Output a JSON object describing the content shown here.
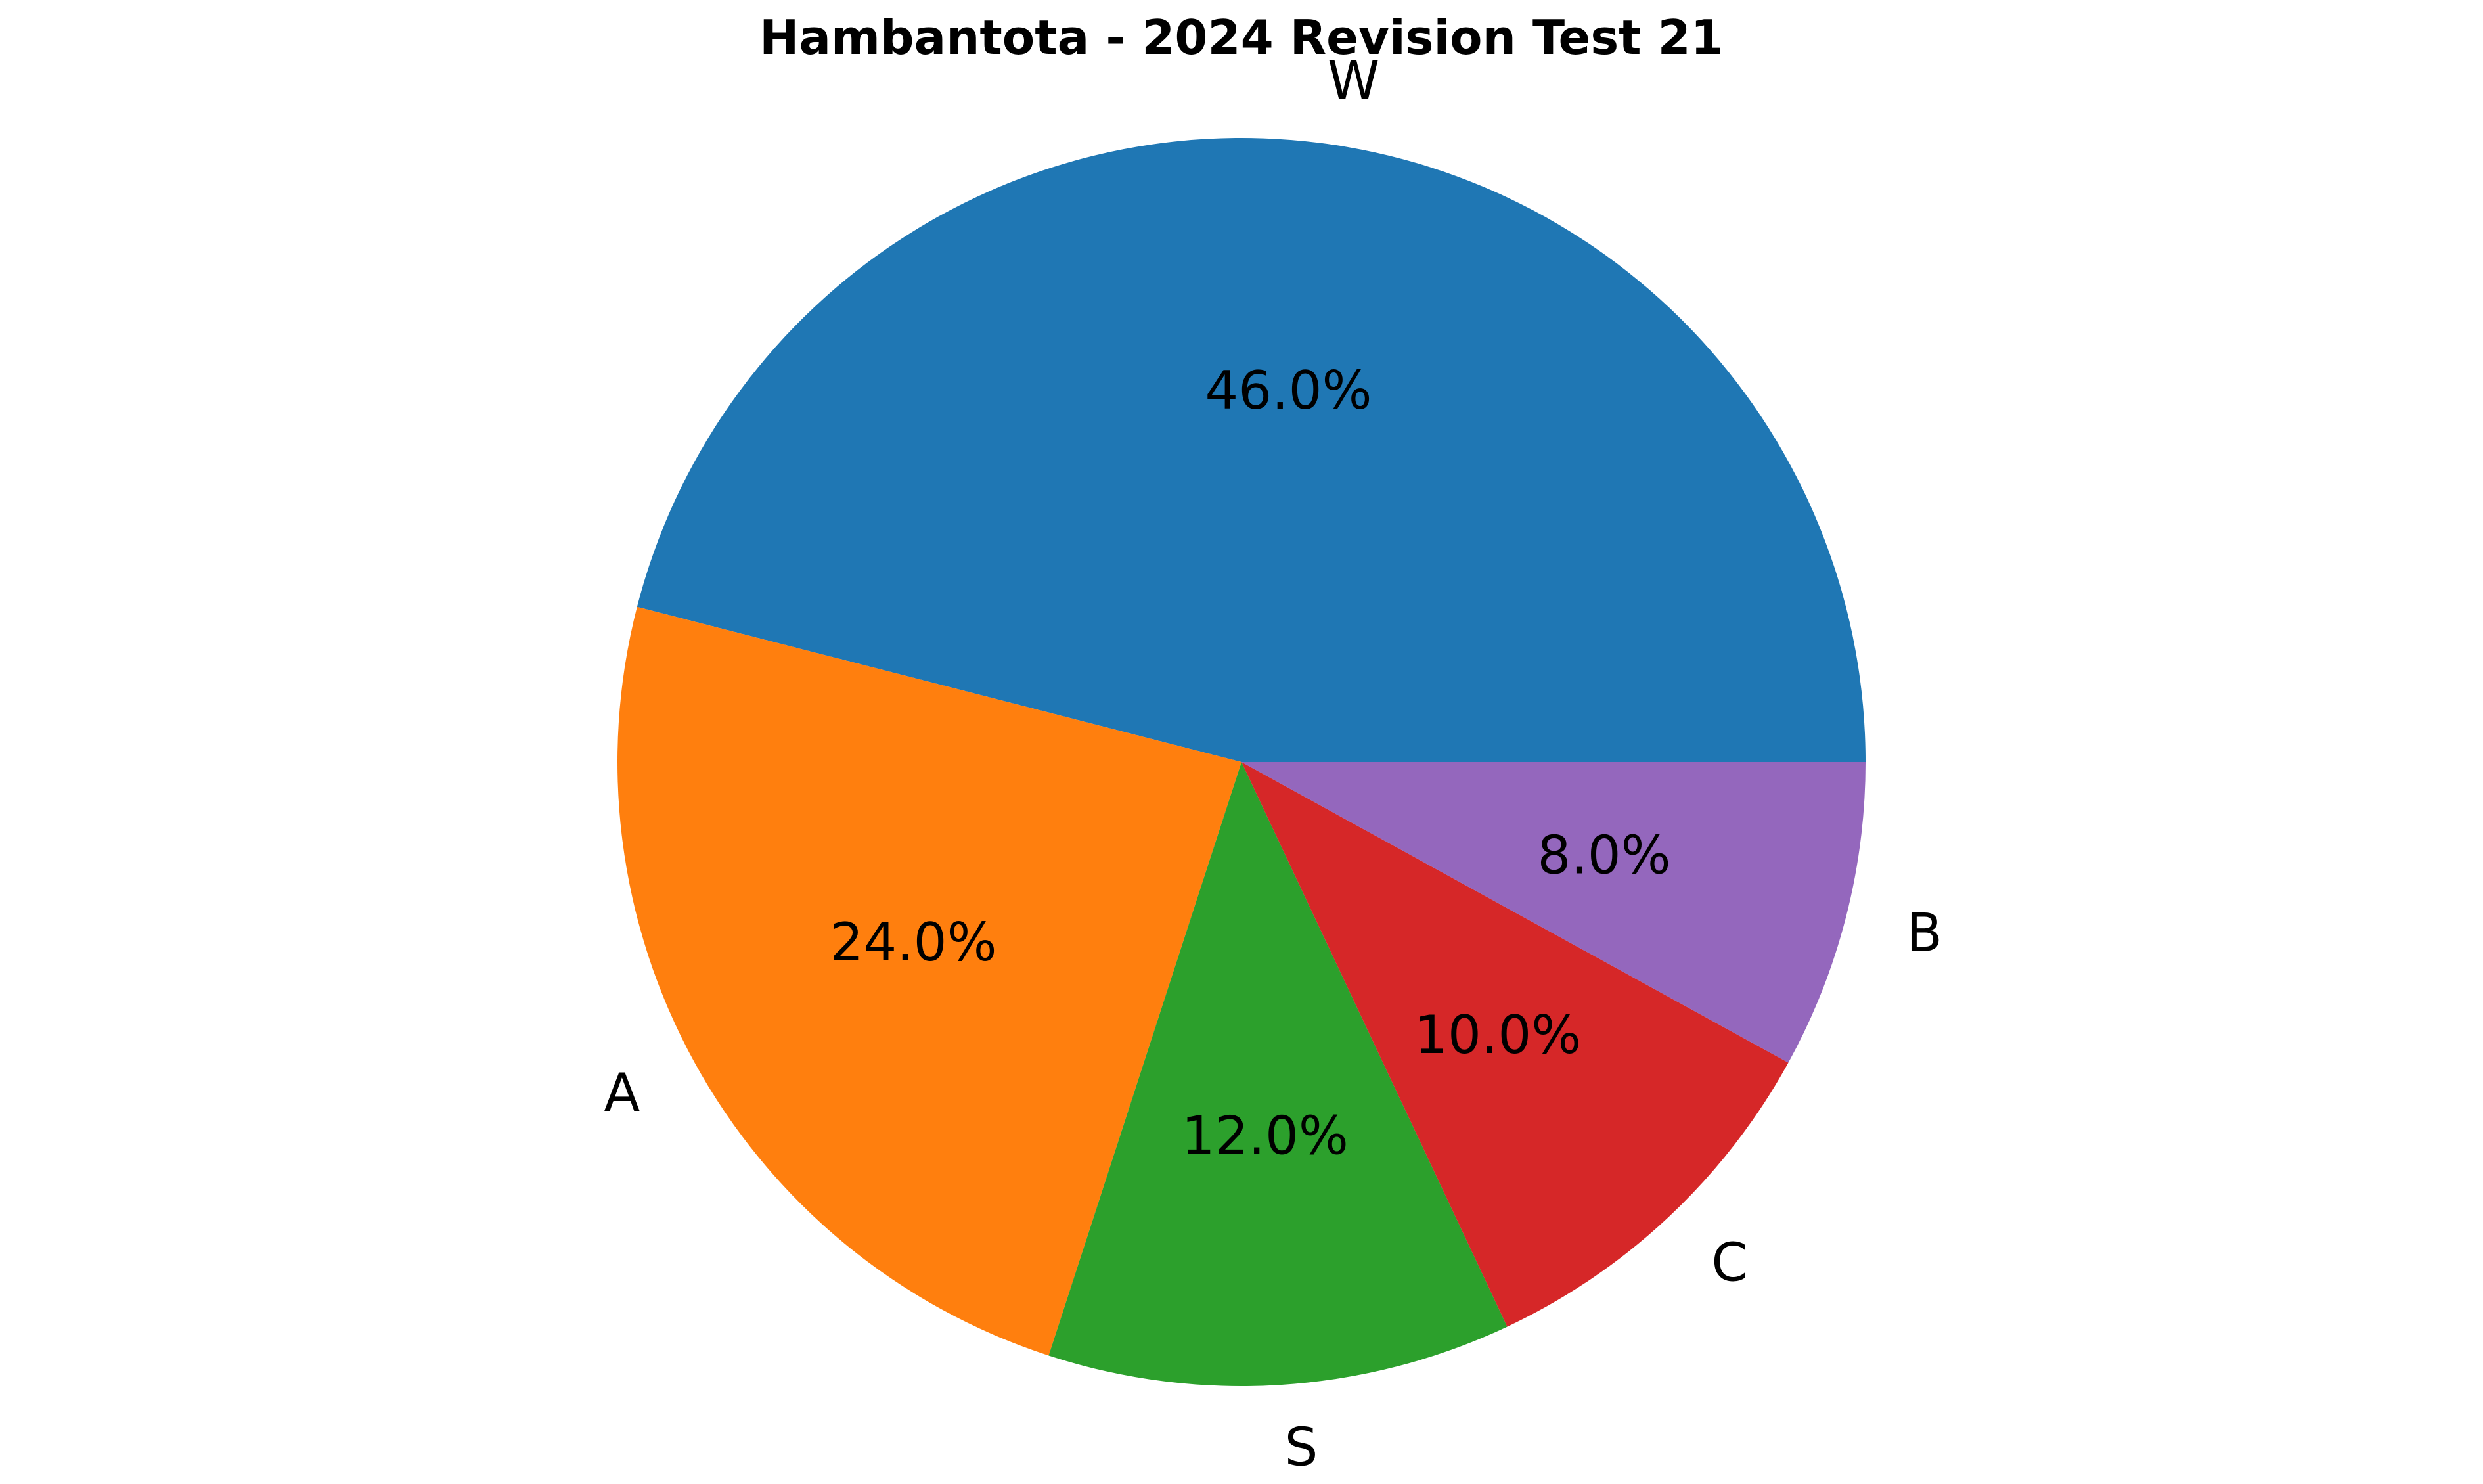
{
  "chart_data": {
    "type": "pie",
    "title": "Hambantota - 2024 Revision Test 21",
    "slices": [
      {
        "label": "W",
        "value": 46.0,
        "pct_label": "46.0%",
        "color": "#1f77b4"
      },
      {
        "label": "A",
        "value": 24.0,
        "pct_label": "24.0%",
        "color": "#ff7f0e"
      },
      {
        "label": "S",
        "value": 12.0,
        "pct_label": "12.0%",
        "color": "#2ca02c"
      },
      {
        "label": "C",
        "value": 10.0,
        "pct_label": "10.0%",
        "color": "#d62728"
      },
      {
        "label": "B",
        "value": 8.0,
        "pct_label": "8.0%",
        "color": "#9467bd"
      }
    ],
    "start_angle_deg": 0,
    "direction": "counterclockwise",
    "legend": "none"
  }
}
